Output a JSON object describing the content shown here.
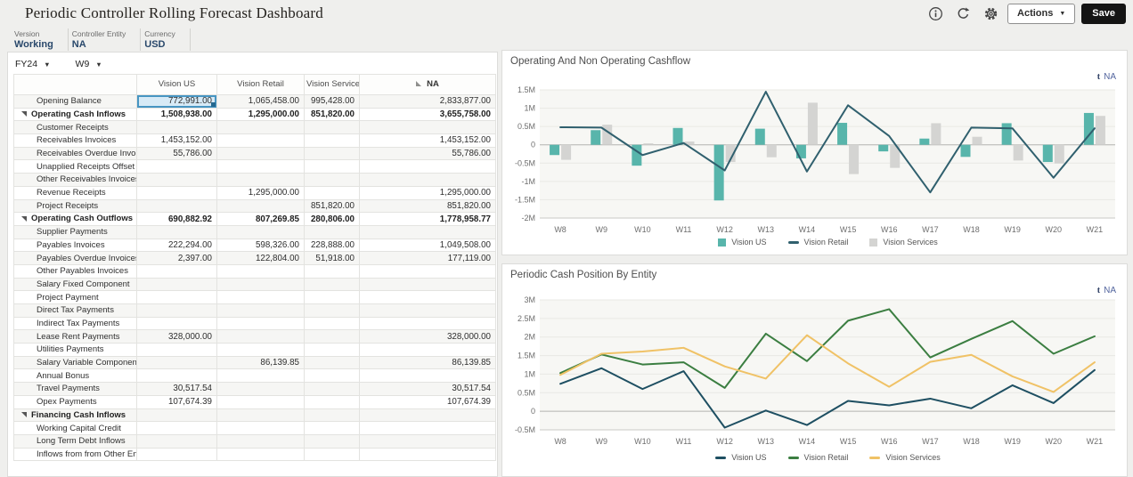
{
  "header": {
    "title": "Periodic Controller Rolling Forecast Dashboard",
    "actions_label": "Actions",
    "save_label": "Save"
  },
  "pov": {
    "items": [
      {
        "label": "Version",
        "value": "Working"
      },
      {
        "label": "Controller Entity",
        "value": "NA"
      },
      {
        "label": "Currency",
        "value": "USD"
      }
    ]
  },
  "grid": {
    "year_selector": "FY24",
    "week_selector": "W9",
    "columns": [
      "Vision US",
      "Vision Retail",
      "Vision Services",
      "NA"
    ],
    "rows": [
      {
        "label": "Opening Balance",
        "parent": false,
        "bold": false,
        "values": [
          "772,991.00",
          "1,065,458.00",
          "995,428.00",
          "2,833,877.00"
        ],
        "selected_col": 0
      },
      {
        "label": "Operating Cash Inflows",
        "parent": true,
        "bold": true,
        "values": [
          "1,508,938.00",
          "1,295,000.00",
          "851,820.00",
          "3,655,758.00"
        ]
      },
      {
        "label": "Customer Receipts",
        "parent": false,
        "bold": false,
        "values": [
          "",
          "",
          "",
          ""
        ]
      },
      {
        "label": "Receivables Invoices",
        "parent": false,
        "bold": false,
        "values": [
          "1,453,152.00",
          "",
          "",
          "1,453,152.00"
        ]
      },
      {
        "label": "Receivables Overdue Invoices",
        "parent": false,
        "bold": false,
        "values": [
          "55,786.00",
          "",
          "",
          "55,786.00"
        ]
      },
      {
        "label": "Unapplied Receipts Offset",
        "parent": false,
        "bold": false,
        "values": [
          "",
          "",
          "",
          ""
        ]
      },
      {
        "label": "Other Receivables Invoices",
        "parent": false,
        "bold": false,
        "values": [
          "",
          "",
          "",
          ""
        ]
      },
      {
        "label": "Revenue Receipts",
        "parent": false,
        "bold": false,
        "values": [
          "",
          "1,295,000.00",
          "",
          "1,295,000.00"
        ]
      },
      {
        "label": "Project Receipts",
        "parent": false,
        "bold": false,
        "values": [
          "",
          "",
          "851,820.00",
          "851,820.00"
        ]
      },
      {
        "label": "Operating Cash Outflows",
        "parent": true,
        "bold": true,
        "values": [
          "690,882.92",
          "807,269.85",
          "280,806.00",
          "1,778,958.77"
        ]
      },
      {
        "label": "Supplier Payments",
        "parent": false,
        "bold": false,
        "values": [
          "",
          "",
          "",
          ""
        ]
      },
      {
        "label": "Payables Invoices",
        "parent": false,
        "bold": false,
        "values": [
          "222,294.00",
          "598,326.00",
          "228,888.00",
          "1,049,508.00"
        ]
      },
      {
        "label": "Payables Overdue Invoices",
        "parent": false,
        "bold": false,
        "values": [
          "2,397.00",
          "122,804.00",
          "51,918.00",
          "177,119.00"
        ]
      },
      {
        "label": "Other Payables Invoices",
        "parent": false,
        "bold": false,
        "values": [
          "",
          "",
          "",
          ""
        ]
      },
      {
        "label": "Salary Fixed  Component",
        "parent": false,
        "bold": false,
        "values": [
          "",
          "",
          "",
          ""
        ]
      },
      {
        "label": "Project Payment",
        "parent": false,
        "bold": false,
        "values": [
          "",
          "",
          "",
          ""
        ]
      },
      {
        "label": "Direct Tax Payments",
        "parent": false,
        "bold": false,
        "values": [
          "",
          "",
          "",
          ""
        ]
      },
      {
        "label": "Indirect Tax Payments",
        "parent": false,
        "bold": false,
        "values": [
          "",
          "",
          "",
          ""
        ]
      },
      {
        "label": "Lease Rent Payments",
        "parent": false,
        "bold": false,
        "values": [
          "328,000.00",
          "",
          "",
          "328,000.00"
        ]
      },
      {
        "label": "Utilities Payments",
        "parent": false,
        "bold": false,
        "values": [
          "",
          "",
          "",
          ""
        ]
      },
      {
        "label": "Salary Variable Component",
        "parent": false,
        "bold": false,
        "values": [
          "",
          "86,139.85",
          "",
          "86,139.85"
        ]
      },
      {
        "label": "Annual Bonus",
        "parent": false,
        "bold": false,
        "values": [
          "",
          "",
          "",
          ""
        ]
      },
      {
        "label": "Travel Payments",
        "parent": false,
        "bold": false,
        "values": [
          "30,517.54",
          "",
          "",
          "30,517.54"
        ]
      },
      {
        "label": "Opex Payments",
        "parent": false,
        "bold": false,
        "values": [
          "107,674.39",
          "",
          "",
          "107,674.39"
        ]
      },
      {
        "label": "Financing Cash Inflows",
        "parent": true,
        "bold": true,
        "values": [
          "",
          "",
          "",
          ""
        ]
      },
      {
        "label": "Working Capital Credit",
        "parent": false,
        "bold": false,
        "values": [
          "",
          "",
          "",
          ""
        ]
      },
      {
        "label": "Long Term Debt Inflows",
        "parent": false,
        "bold": false,
        "values": [
          "",
          "",
          "",
          ""
        ]
      },
      {
        "label": "Inflows from from Other Entities",
        "parent": false,
        "bold": false,
        "values": [
          "",
          "",
          "",
          ""
        ]
      }
    ]
  },
  "chart_data": [
    {
      "type": "combo",
      "title": "Operating And Non Operating Cashflow",
      "pov_link": "NA",
      "unit": "M",
      "x": [
        "W8",
        "W9",
        "W10",
        "W11",
        "W12",
        "W13",
        "W14",
        "W15",
        "W16",
        "W17",
        "W18",
        "W19",
        "W20",
        "W21"
      ],
      "ylim": [
        -2,
        1.5
      ],
      "ytick_step": 0.5,
      "grid": true,
      "legend_position": "bottom",
      "series": [
        {
          "name": "Vision US",
          "type": "bar",
          "color": "#58b5ab",
          "values": [
            -0.28,
            0.4,
            -0.57,
            0.46,
            -1.52,
            0.44,
            -0.37,
            0.6,
            -0.18,
            0.17,
            -0.33,
            0.59,
            -0.47,
            0.87
          ]
        },
        {
          "name": "Vision Retail",
          "type": "line",
          "color": "#30606e",
          "values": [
            0.48,
            0.47,
            -0.28,
            0.05,
            -0.7,
            1.45,
            -0.73,
            1.08,
            0.24,
            -1.3,
            0.47,
            0.45,
            -0.9,
            0.45
          ]
        },
        {
          "name": "Vision Services",
          "type": "bar",
          "color": "#d4d4d2",
          "values": [
            -0.41,
            0.55,
            0.04,
            0.09,
            -0.47,
            -0.34,
            1.15,
            -0.8,
            -0.63,
            0.59,
            0.22,
            -0.43,
            -0.51,
            0.79
          ]
        }
      ]
    },
    {
      "type": "line",
      "title": "Periodic Cash Position By Entity",
      "pov_link": "NA",
      "unit": "M",
      "x": [
        "W8",
        "W9",
        "W10",
        "W11",
        "W12",
        "W13",
        "W14",
        "W15",
        "W16",
        "W17",
        "W18",
        "W19",
        "W20",
        "W21"
      ],
      "ylim": [
        -0.5,
        3
      ],
      "ytick_step": 0.5,
      "grid": true,
      "legend_position": "bottom",
      "series": [
        {
          "name": "Vision US",
          "type": "line",
          "color": "#1e4f62",
          "values": [
            0.74,
            1.16,
            0.6,
            1.08,
            -0.44,
            0.02,
            -0.37,
            0.28,
            0.16,
            0.34,
            0.08,
            0.7,
            0.22,
            1.11
          ]
        },
        {
          "name": "Vision Retail",
          "type": "line",
          "color": "#3b7e41",
          "values": [
            1.03,
            1.53,
            1.26,
            1.32,
            0.63,
            2.09,
            1.35,
            2.44,
            2.75,
            1.45,
            1.95,
            2.43,
            1.55,
            2.02
          ]
        },
        {
          "name": "Vision Services",
          "type": "line",
          "color": "#f0c266",
          "values": [
            0.98,
            1.55,
            1.61,
            1.71,
            1.21,
            0.88,
            2.05,
            1.29,
            0.66,
            1.33,
            1.52,
            0.94,
            0.52,
            1.32
          ]
        }
      ]
    }
  ]
}
